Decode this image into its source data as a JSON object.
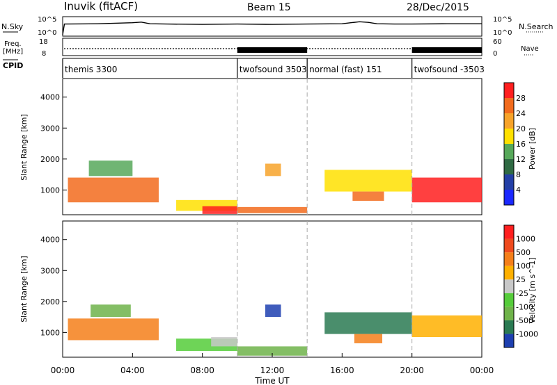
{
  "header": {
    "title": "Inuvik (fitACF)",
    "beam": "Beam 15",
    "date": "28/Dec/2015"
  },
  "chart_data": [
    {
      "id": "nsky_nsearch",
      "type": "line",
      "left_label": "N.Sky",
      "right_label": "N.Search",
      "left_ticks": [
        "10^5",
        "10^0"
      ],
      "right_ticks": [
        "10^5",
        "10^0"
      ],
      "x_range_hours": [
        0,
        24
      ],
      "series": [
        {
          "x": [
            0,
            0.1,
            2,
            4,
            4.5,
            5,
            6,
            8,
            10,
            12,
            14,
            16,
            16.5,
            17,
            17.5,
            18,
            19,
            20,
            22,
            24
          ],
          "y": [
            0,
            3.2,
            3.3,
            3.6,
            3.8,
            3.3,
            3.2,
            3.1,
            3.2,
            3.1,
            3.2,
            3.3,
            3.6,
            3.9,
            3.7,
            3.3,
            3.2,
            3.2,
            3.3,
            3.3
          ]
        }
      ]
    },
    {
      "id": "freq_nave",
      "type": "line",
      "left_label": "Freq. [MHz]",
      "right_label": "Nave",
      "left_ticks": [
        "18",
        "8"
      ],
      "right_ticks": [
        "60",
        "0"
      ],
      "x_range_hours": [
        0,
        24
      ],
      "dense_intervals_hours": [
        [
          10,
          14
        ],
        [
          20,
          24
        ]
      ],
      "freq_level_mhz": 11
    },
    {
      "id": "cpid",
      "type": "table",
      "label": "CPID",
      "segments": [
        {
          "start": 0,
          "name": "themis 3300"
        },
        {
          "start": 10,
          "name": "twofsound 3503"
        },
        {
          "start": 14,
          "name": "normal (fast) 151"
        },
        {
          "start": 20,
          "name": "twofsound -3503"
        }
      ]
    },
    {
      "id": "power",
      "type": "heatmap",
      "ylabel": "Slant Range [km]",
      "yticks": [
        1000,
        2000,
        3000,
        4000
      ],
      "ylim": [
        200,
        4600
      ],
      "colorbar_label": "Power [dB]",
      "colorbar_ticks": [
        4,
        8,
        12,
        16,
        20,
        24,
        28
      ],
      "colorbar_colors": [
        "#1a28ff",
        "#233fa6",
        "#2f6a43",
        "#57a85a",
        "#ffe000",
        "#f7a32a",
        "#f26b1d",
        "#ff1f1f"
      ],
      "cells": [
        {
          "t": 0.3,
          "r": 1000,
          "dt": 5.2,
          "dr": 800,
          "level": 6
        },
        {
          "t": 1.5,
          "r": 1700,
          "dt": 2.5,
          "dr": 500,
          "level": 3
        },
        {
          "t": 6.5,
          "r": 500,
          "dt": 3.5,
          "dr": 350,
          "level": 4
        },
        {
          "t": 8.0,
          "r": 350,
          "dt": 2.0,
          "dr": 250,
          "level": 7
        },
        {
          "t": 10.0,
          "r": 350,
          "dt": 4.0,
          "dr": 200,
          "level": 6
        },
        {
          "t": 11.6,
          "r": 1650,
          "dt": 0.9,
          "dr": 400,
          "level": 5
        },
        {
          "t": 15.0,
          "r": 1300,
          "dt": 5.0,
          "dr": 700,
          "level": 4
        },
        {
          "t": 16.6,
          "r": 800,
          "dt": 1.8,
          "dr": 300,
          "level": 6
        },
        {
          "t": 20.0,
          "r": 1000,
          "dt": 4.0,
          "dr": 800,
          "level": 7
        }
      ]
    },
    {
      "id": "velocity",
      "type": "heatmap",
      "ylabel": "Slant Range [km]",
      "yticks": [
        1000,
        2000,
        3000,
        4000
      ],
      "ylim": [
        200,
        4600
      ],
      "colorbar_label": "Velocity [m s^-1]",
      "colorbar_ticks": [
        1000,
        500,
        100,
        25,
        -25,
        -100,
        -500,
        -1000
      ],
      "colorbar_colors": [
        "#1d3fb0",
        "#2a7a52",
        "#6fb34a",
        "#55cc3a",
        "#c8c8c8",
        "#ffb000",
        "#f57f1a",
        "#ef4a1e",
        "#ff1f1f"
      ],
      "cells": [
        {
          "t": 0.3,
          "r": 1100,
          "dt": 5.2,
          "dr": 700,
          "level": 6
        },
        {
          "t": 1.6,
          "r": 1700,
          "dt": 2.3,
          "dr": 400,
          "level": 2
        },
        {
          "t": 6.5,
          "r": 600,
          "dt": 3.5,
          "dr": 400,
          "level": 3
        },
        {
          "t": 8.5,
          "r": 700,
          "dt": 1.5,
          "dr": 300,
          "level": 4
        },
        {
          "t": 10.0,
          "r": 400,
          "dt": 4.0,
          "dr": 300,
          "level": 2
        },
        {
          "t": 11.6,
          "r": 1700,
          "dt": 0.9,
          "dr": 400,
          "level": 0
        },
        {
          "t": 15.0,
          "r": 1300,
          "dt": 5.0,
          "dr": 700,
          "level": 1
        },
        {
          "t": 16.7,
          "r": 800,
          "dt": 1.6,
          "dr": 300,
          "level": 6
        },
        {
          "t": 20.0,
          "r": 1200,
          "dt": 4.0,
          "dr": 700,
          "level": 5
        }
      ]
    }
  ],
  "x_axis": {
    "label": "Time UT",
    "tick_labels": [
      "00:00",
      "04:00",
      "08:00",
      "12:00",
      "16:00",
      "20:00",
      "00:00"
    ]
  }
}
